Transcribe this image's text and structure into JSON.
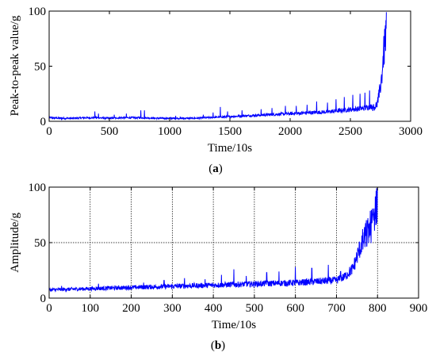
{
  "colors": {
    "series": "#0000ff",
    "axis": "#000000",
    "grid": "#000000",
    "background": "#ffffff"
  },
  "chart_data": [
    {
      "type": "line",
      "caption_open": "(",
      "caption_letter": "a",
      "caption_close": ")",
      "title": "",
      "xlabel": "Time/10s",
      "ylabel": "Peak-to-peak value/g",
      "xlim": [
        0,
        3000
      ],
      "ylim": [
        0,
        100
      ],
      "xticks": [
        0,
        500,
        1000,
        1500,
        2000,
        2500,
        3000
      ],
      "yticks": [
        0,
        50,
        100
      ],
      "grid": false,
      "series": [
        {
          "x": [
            0,
            100,
            200,
            300,
            400,
            500,
            600,
            700,
            800,
            900,
            1000,
            1100,
            1200,
            1300,
            1400,
            1500,
            1600,
            1700,
            1800,
            1900,
            2000,
            2100,
            2200,
            2300,
            2400,
            2500,
            2600,
            2650,
            2700,
            2720,
            2740,
            2760,
            2770,
            2780,
            2790,
            2795,
            2800
          ],
          "y": [
            3,
            2.5,
            2.5,
            3,
            3,
            2.5,
            3,
            3,
            3,
            2.5,
            2.5,
            2.5,
            2.5,
            3,
            3.5,
            4,
            4.5,
            5,
            5.5,
            6,
            6.5,
            7,
            7.5,
            8,
            9,
            10,
            11,
            12,
            13,
            15,
            25,
            40,
            55,
            65,
            75,
            85,
            92
          ],
          "spikes": [
            {
              "x": 380,
              "y": 9
            },
            {
              "x": 410,
              "y": 7
            },
            {
              "x": 540,
              "y": 6
            },
            {
              "x": 640,
              "y": 7
            },
            {
              "x": 760,
              "y": 10
            },
            {
              "x": 790,
              "y": 10
            },
            {
              "x": 1050,
              "y": 5
            },
            {
              "x": 1280,
              "y": 6
            },
            {
              "x": 1360,
              "y": 8
            },
            {
              "x": 1420,
              "y": 13
            },
            {
              "x": 1480,
              "y": 9
            },
            {
              "x": 1600,
              "y": 10
            },
            {
              "x": 1760,
              "y": 11
            },
            {
              "x": 1850,
              "y": 12
            },
            {
              "x": 1960,
              "y": 14
            },
            {
              "x": 2050,
              "y": 14
            },
            {
              "x": 2140,
              "y": 15
            },
            {
              "x": 2220,
              "y": 18
            },
            {
              "x": 2310,
              "y": 17
            },
            {
              "x": 2380,
              "y": 20
            },
            {
              "x": 2450,
              "y": 22
            },
            {
              "x": 2520,
              "y": 24
            },
            {
              "x": 2580,
              "y": 25
            },
            {
              "x": 2620,
              "y": 26
            },
            {
              "x": 2660,
              "y": 28
            },
            {
              "x": 2700,
              "y": 26
            }
          ]
        }
      ]
    },
    {
      "type": "line",
      "caption_open": "(",
      "caption_letter": "b",
      "caption_close": ")",
      "title": "",
      "xlabel": "Time/10s",
      "ylabel": "Amplitude/g",
      "xlim": [
        0,
        900
      ],
      "ylim": [
        0,
        100
      ],
      "xticks": [
        0,
        100,
        200,
        300,
        400,
        500,
        600,
        700,
        800,
        900
      ],
      "yticks": [
        0,
        50,
        100
      ],
      "grid": true,
      "series": [
        {
          "x": [
            0,
            50,
            100,
            150,
            200,
            250,
            300,
            350,
            400,
            450,
            500,
            550,
            600,
            650,
            700,
            720,
            740,
            750,
            760,
            770,
            780,
            790,
            795,
            800
          ],
          "y": [
            7,
            7.5,
            8,
            8.5,
            9,
            9.5,
            10,
            10.5,
            11,
            11.5,
            12,
            12.5,
            13,
            14,
            15,
            18,
            25,
            35,
            45,
            55,
            62,
            70,
            82,
            90
          ],
          "spikes": [
            {
              "x": 30,
              "y": 11
            },
            {
              "x": 120,
              "y": 13
            },
            {
              "x": 160,
              "y": 11
            },
            {
              "x": 230,
              "y": 14
            },
            {
              "x": 280,
              "y": 16
            },
            {
              "x": 330,
              "y": 18
            },
            {
              "x": 380,
              "y": 17
            },
            {
              "x": 420,
              "y": 21
            },
            {
              "x": 450,
              "y": 26
            },
            {
              "x": 480,
              "y": 20
            },
            {
              "x": 530,
              "y": 23
            },
            {
              "x": 560,
              "y": 24
            },
            {
              "x": 600,
              "y": 28
            },
            {
              "x": 640,
              "y": 27
            },
            {
              "x": 680,
              "y": 30
            },
            {
              "x": 710,
              "y": 24
            }
          ]
        }
      ]
    }
  ]
}
